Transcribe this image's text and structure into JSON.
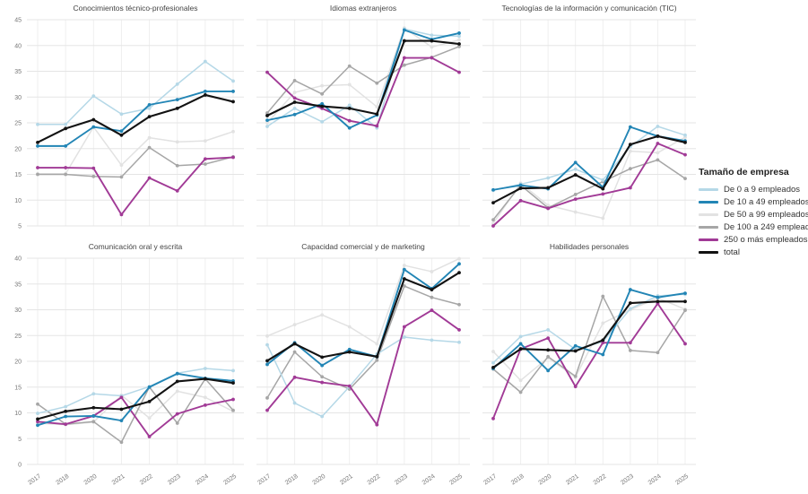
{
  "page": {
    "background": "#ffffff"
  },
  "legend": {
    "title": "Tamaño de empresa",
    "items": [
      {
        "label": "De 0 a 9 empleados",
        "color": "#b5d8e7"
      },
      {
        "label": "De 10 a 49 empleados",
        "color": "#2285b5"
      },
      {
        "label": "De 50 a 99 empleados",
        "color": "#e2e2e2"
      },
      {
        "label": "De 100 a 249 empleados",
        "color": "#a6a6a6"
      },
      {
        "label": "250 o más empleados",
        "color": "#a13a96"
      },
      {
        "label": "total",
        "color": "#121212"
      }
    ]
  },
  "chart_data": [
    {
      "type": "line",
      "title": "Conocimientos técnico-profesionales",
      "x": [
        "2017",
        "2018",
        "2020",
        "2021",
        "2022",
        "2023",
        "2024",
        "2025"
      ],
      "ylim": [
        5,
        45
      ],
      "yticks": [
        45,
        40,
        35,
        30,
        25,
        20,
        15,
        10,
        5
      ],
      "grid": true,
      "legend_position": "right-outside",
      "series": [
        {
          "name": "De 0 a 9 empleados",
          "values": [
            24.7,
            24.7,
            30.2,
            26.7,
            27.8,
            32.5,
            36.9,
            33.1
          ]
        },
        {
          "name": "De 10 a 49 empleados",
          "values": [
            20.5,
            20.5,
            24.2,
            23.4,
            28.5,
            29.5,
            31.1,
            31.1
          ]
        },
        {
          "name": "De 50 a 99 empleados",
          "values": [
            15.1,
            15.1,
            24.2,
            16.8,
            22.1,
            21.3,
            21.5,
            23.3
          ]
        },
        {
          "name": "De 100 a 249 empleados",
          "values": [
            15.0,
            15.0,
            14.6,
            14.5,
            20.2,
            16.7,
            17.0,
            18.4
          ]
        },
        {
          "name": "250 o más empleados",
          "values": [
            16.3,
            16.3,
            16.2,
            7.2,
            14.3,
            11.8,
            18.0,
            18.3
          ]
        },
        {
          "name": "total",
          "values": [
            21.2,
            23.9,
            25.6,
            22.6,
            26.2,
            27.8,
            30.4,
            29.1
          ]
        }
      ]
    },
    {
      "type": "line",
      "title": "Idiomas extranjeros",
      "x": [
        "2017",
        "2018",
        "2020",
        "2021",
        "2022",
        "2023",
        "2024",
        "2025"
      ],
      "ylim": [
        5,
        45
      ],
      "yticks": [
        45,
        40,
        35,
        30,
        25,
        20,
        15,
        10,
        5
      ],
      "grid": true,
      "series": [
        {
          "name": "De 0 a 9 empleados",
          "values": [
            24.3,
            27.8,
            25.2,
            28.4,
            24.0,
            43.2,
            42.0,
            41.8
          ]
        },
        {
          "name": "De 10 a 49 empleados",
          "values": [
            25.5,
            26.6,
            28.7,
            24.0,
            26.5,
            43.0,
            41.2,
            42.4
          ]
        },
        {
          "name": "De 50 a 99 empleados",
          "values": [
            25.0,
            30.9,
            32.2,
            32.4,
            28.1,
            43.4,
            39.7,
            41.1
          ]
        },
        {
          "name": "De 100 a 249 empleados",
          "values": [
            26.9,
            33.2,
            30.6,
            36.0,
            32.7,
            36.2,
            37.7,
            39.8
          ]
        },
        {
          "name": "250 o más empleados",
          "values": [
            34.8,
            29.8,
            27.8,
            25.4,
            24.4,
            37.6,
            37.6,
            34.8
          ]
        },
        {
          "name": "total",
          "values": [
            26.4,
            29.0,
            28.2,
            27.8,
            26.7,
            40.9,
            40.9,
            40.3
          ]
        }
      ]
    },
    {
      "type": "line",
      "title": "Tecnologías de la información y comunicación (TIC)",
      "x": [
        "2017",
        "2018",
        "2020",
        "2021",
        "2022",
        "2023",
        "2024",
        "2025"
      ],
      "ylim": [
        5,
        45
      ],
      "yticks": [
        45,
        40,
        35,
        30,
        25,
        20,
        15,
        10,
        5
      ],
      "grid": true,
      "series": [
        {
          "name": "De 0 a 9 empleados",
          "values": [
            11.9,
            13.1,
            14.3,
            16.0,
            13.9,
            20.4,
            24.3,
            22.6
          ]
        },
        {
          "name": "De 10 a 49 empleados",
          "values": [
            12.0,
            12.9,
            12.2,
            17.3,
            12.5,
            24.2,
            22.4,
            21.5
          ]
        },
        {
          "name": "De 50 a 99 empleados",
          "values": [
            5.5,
            13.3,
            9.0,
            7.7,
            6.5,
            19.5,
            19.2,
            22.2
          ]
        },
        {
          "name": "De 100 a 249 empleados",
          "values": [
            6.2,
            12.9,
            8.5,
            11.1,
            13.6,
            16.1,
            17.8,
            14.2
          ]
        },
        {
          "name": "250 o más empleados",
          "values": [
            5.0,
            9.9,
            8.4,
            10.2,
            11.2,
            12.4,
            21.0,
            18.8
          ]
        },
        {
          "name": "total",
          "values": [
            9.5,
            12.3,
            12.4,
            14.9,
            12.2,
            20.8,
            22.4,
            21.2
          ]
        }
      ]
    },
    {
      "type": "line",
      "title": "Comunicación oral y escrita",
      "x": [
        "2017",
        "2018",
        "2020",
        "2021",
        "2022",
        "2023",
        "2024",
        "2025"
      ],
      "ylim": [
        0,
        40
      ],
      "yticks": [
        40,
        35,
        30,
        25,
        20,
        15,
        10,
        5,
        0
      ],
      "grid": true,
      "series": [
        {
          "name": "De 0 a 9 empleados",
          "values": [
            9.9,
            11.2,
            13.7,
            13.3,
            15.1,
            17.7,
            18.6,
            18.2
          ]
        },
        {
          "name": "De 10 a 49 empleados",
          "values": [
            7.6,
            9.3,
            9.4,
            8.5,
            15.0,
            17.6,
            16.7,
            16.2
          ]
        },
        {
          "name": "De 50 a 99 empleados",
          "values": [
            8.0,
            7.7,
            8.2,
            13.4,
            9.0,
            14.2,
            13.0,
            10.3
          ]
        },
        {
          "name": "De 100 a 249 empleados",
          "values": [
            11.7,
            7.8,
            8.3,
            4.3,
            15.0,
            8.0,
            16.6,
            10.5
          ]
        },
        {
          "name": "250 o más empleados",
          "values": [
            8.3,
            7.8,
            9.4,
            13.0,
            5.4,
            9.8,
            11.5,
            12.6
          ]
        },
        {
          "name": "total",
          "values": [
            8.8,
            10.3,
            11.0,
            10.7,
            12.2,
            16.1,
            16.6,
            15.8
          ]
        }
      ]
    },
    {
      "type": "line",
      "title": "Capacidad comercial y de marketing",
      "x": [
        "2017",
        "2018",
        "2020",
        "2021",
        "2022",
        "2023",
        "2024",
        "2025"
      ],
      "ylim": [
        0,
        40
      ],
      "yticks": [
        40,
        35,
        30,
        25,
        20,
        15,
        10,
        5,
        0
      ],
      "grid": true,
      "series": [
        {
          "name": "De 0 a 9 empleados",
          "values": [
            23.2,
            11.9,
            9.3,
            15.1,
            21.4,
            24.7,
            24.1,
            23.7
          ]
        },
        {
          "name": "De 10 a 49 empleados",
          "values": [
            19.4,
            23.6,
            19.2,
            22.3,
            20.9,
            37.8,
            34.1,
            38.9
          ]
        },
        {
          "name": "De 50 a 99 empleados",
          "values": [
            24.9,
            27.1,
            29.0,
            26.7,
            23.4,
            38.6,
            37.4,
            39.9
          ]
        },
        {
          "name": "De 100 a 249 empleados",
          "values": [
            12.9,
            21.8,
            17.0,
            14.6,
            20.2,
            34.6,
            32.4,
            31.0
          ]
        },
        {
          "name": "250 o más empleados",
          "values": [
            10.5,
            16.9,
            15.9,
            15.2,
            7.7,
            26.7,
            29.9,
            26.1
          ]
        },
        {
          "name": "total",
          "values": [
            20.1,
            23.4,
            20.8,
            21.8,
            20.9,
            36.0,
            33.9,
            37.2
          ]
        }
      ]
    },
    {
      "type": "line",
      "title": "Habilidades personales",
      "x": [
        "2017",
        "2018",
        "2020",
        "2021",
        "2022",
        "2023",
        "2024",
        "2025"
      ],
      "ylim": [
        0,
        40
      ],
      "yticks": [
        40,
        35,
        30,
        25,
        20,
        15,
        10,
        5,
        0
      ],
      "grid": true,
      "series": [
        {
          "name": "De 0 a 9 empleados",
          "values": [
            19.7,
            24.8,
            26.1,
            22.3,
            23.8,
            30.2,
            32.7,
            33.0
          ]
        },
        {
          "name": "De 10 a 49 empleados",
          "values": [
            18.6,
            23.4,
            18.2,
            23.0,
            21.3,
            33.9,
            32.4,
            33.2
          ]
        },
        {
          "name": "De 50 a 99 empleados",
          "values": [
            21.9,
            16.3,
            20.7,
            16.9,
            27.4,
            30.0,
            32.3,
            30.1
          ]
        },
        {
          "name": "De 100 a 249 empleados",
          "values": [
            18.5,
            14.0,
            20.9,
            17.1,
            32.6,
            22.1,
            21.7,
            29.9
          ]
        },
        {
          "name": "250 o más empleados",
          "values": [
            8.9,
            22.4,
            24.5,
            15.1,
            23.6,
            23.6,
            31.2,
            23.4
          ]
        },
        {
          "name": "total",
          "values": [
            18.8,
            22.4,
            22.2,
            22.0,
            24.1,
            31.3,
            31.6,
            31.6
          ]
        }
      ]
    }
  ]
}
